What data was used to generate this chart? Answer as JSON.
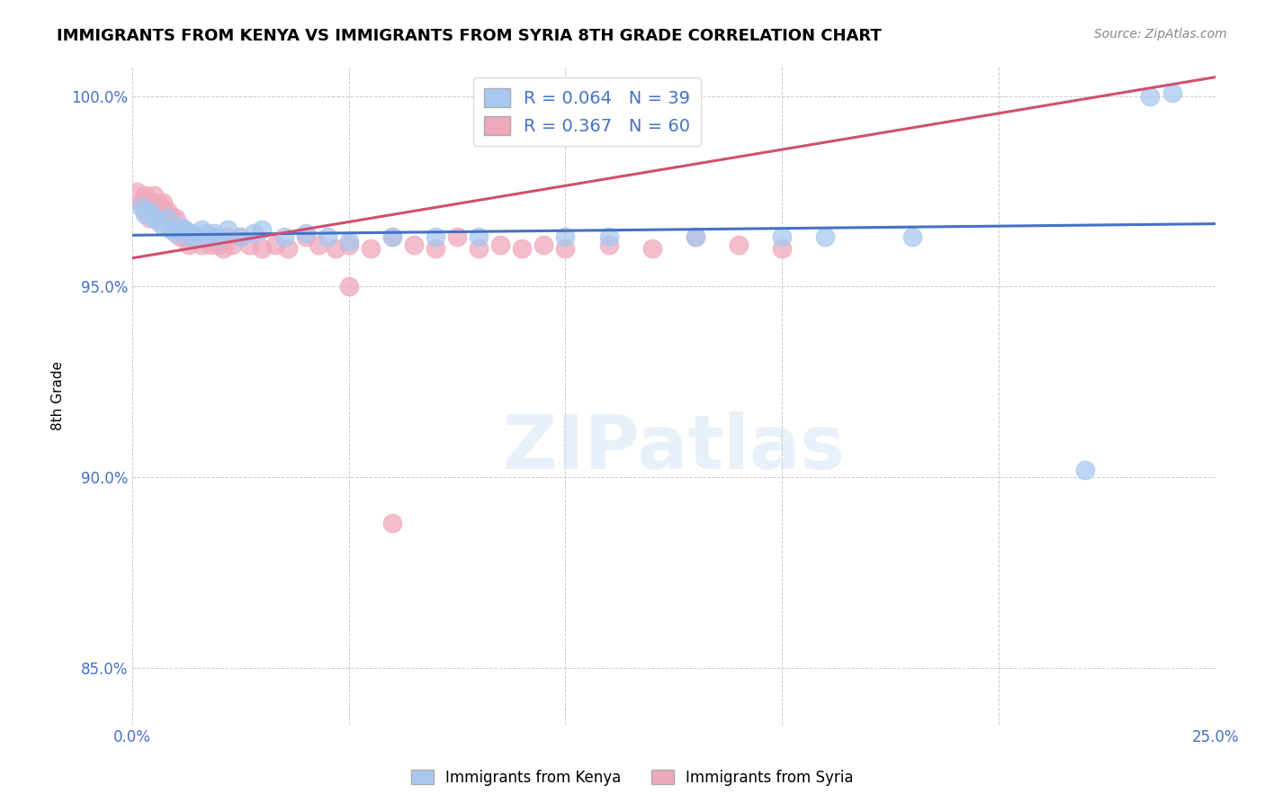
{
  "title": "IMMIGRANTS FROM KENYA VS IMMIGRANTS FROM SYRIA 8TH GRADE CORRELATION CHART",
  "source": "Source: ZipAtlas.com",
  "ylabel": "8th Grade",
  "xlim": [
    0.0,
    0.25
  ],
  "ylim": [
    0.835,
    1.008
  ],
  "x_ticks": [
    0.0,
    0.05,
    0.1,
    0.15,
    0.2,
    0.25
  ],
  "x_tick_labels": [
    "0.0%",
    "",
    "",
    "",
    "",
    "25.0%"
  ],
  "y_ticks": [
    0.85,
    0.9,
    0.95,
    1.0
  ],
  "y_tick_labels": [
    "85.0%",
    "90.0%",
    "95.0%",
    "100.0%"
  ],
  "kenya_color": "#a8c8f0",
  "syria_color": "#f0a8bc",
  "kenya_line_color": "#4472c4",
  "syria_line_color": "#d05070",
  "background_color": "#ffffff",
  "grid_color": "#cccccc",
  "kenya_R": 0.064,
  "kenya_N": 39,
  "syria_R": 0.367,
  "syria_N": 60,
  "kenya_legend_label": "R = 0.064   N = 39",
  "syria_legend_label": "R = 0.367   N = 60",
  "kenya_bottom_label": "Immigrants from Kenya",
  "syria_bottom_label": "Immigrants from Syria",
  "kenya_x": [
    0.002,
    0.003,
    0.004,
    0.005,
    0.006,
    0.007,
    0.008,
    0.009,
    0.01,
    0.011,
    0.012,
    0.013,
    0.014,
    0.015,
    0.016,
    0.017,
    0.018,
    0.019,
    0.02,
    0.022,
    0.025,
    0.028,
    0.03,
    0.035,
    0.04,
    0.045,
    0.05,
    0.06,
    0.07,
    0.08,
    0.1,
    0.11,
    0.13,
    0.15,
    0.16,
    0.18,
    0.22,
    0.235,
    0.24
  ],
  "kenya_y": [
    0.971,
    0.969,
    0.97,
    0.968,
    0.967,
    0.966,
    0.968,
    0.965,
    0.964,
    0.966,
    0.965,
    0.963,
    0.964,
    0.963,
    0.965,
    0.964,
    0.963,
    0.964,
    0.963,
    0.965,
    0.963,
    0.964,
    0.965,
    0.963,
    0.964,
    0.963,
    0.962,
    0.963,
    0.963,
    0.963,
    0.963,
    0.963,
    0.963,
    0.963,
    0.963,
    0.963,
    0.902,
    1.0,
    1.001
  ],
  "syria_x": [
    0.001,
    0.002,
    0.003,
    0.003,
    0.004,
    0.004,
    0.005,
    0.005,
    0.006,
    0.006,
    0.007,
    0.007,
    0.008,
    0.008,
    0.009,
    0.009,
    0.01,
    0.01,
    0.011,
    0.011,
    0.012,
    0.012,
    0.013,
    0.013,
    0.014,
    0.015,
    0.016,
    0.017,
    0.018,
    0.019,
    0.02,
    0.021,
    0.022,
    0.023,
    0.025,
    0.027,
    0.03,
    0.033,
    0.036,
    0.04,
    0.043,
    0.047,
    0.05,
    0.055,
    0.06,
    0.065,
    0.07,
    0.075,
    0.08,
    0.085,
    0.09,
    0.095,
    0.1,
    0.11,
    0.12,
    0.13,
    0.14,
    0.15,
    0.05,
    0.06
  ],
  "syria_y": [
    0.975,
    0.972,
    0.97,
    0.974,
    0.972,
    0.968,
    0.97,
    0.974,
    0.972,
    0.97,
    0.972,
    0.968,
    0.97,
    0.968,
    0.966,
    0.968,
    0.966,
    0.968,
    0.965,
    0.963,
    0.965,
    0.963,
    0.963,
    0.961,
    0.963,
    0.963,
    0.961,
    0.963,
    0.961,
    0.963,
    0.961,
    0.96,
    0.963,
    0.961,
    0.963,
    0.961,
    0.96,
    0.961,
    0.96,
    0.963,
    0.961,
    0.96,
    0.961,
    0.96,
    0.963,
    0.961,
    0.96,
    0.963,
    0.96,
    0.961,
    0.96,
    0.961,
    0.96,
    0.961,
    0.96,
    0.963,
    0.961,
    0.96,
    0.95,
    0.888
  ]
}
